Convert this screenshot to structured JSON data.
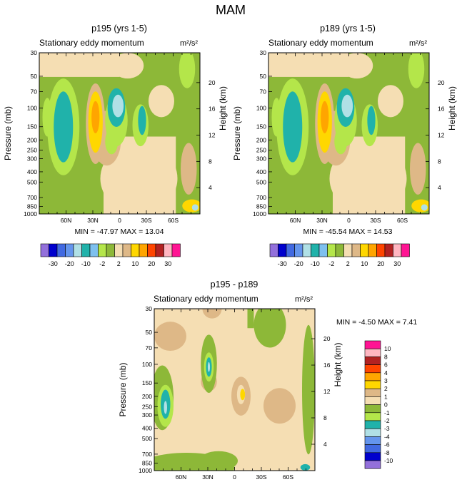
{
  "title": "MAM",
  "colors": {
    "-35": "#9370db",
    "-30": "#0000cd",
    "-25": "#4169e1",
    "-20": "#6495ed",
    "-15": "#b0e0e6",
    "-10": "#20b2aa",
    "-5": "#7ec0ee",
    "-2": "#b4e64a",
    "0": "#8db838",
    "2": "#f5deb3",
    "5": "#deb887",
    "10": "#ffd700",
    "15": "#ffa500",
    "20": "#ff4500",
    "25": "#b22222",
    "30": "#ffb6c1",
    "35": "#ff1493"
  },
  "chart_data": [
    {
      "type": "heatmap",
      "title": "p195 (yrs 1-5)",
      "subtitle": "Stationary eddy momentum",
      "units": "m²/s²",
      "ylabel": "Pressure (mb)",
      "ylabel_right": "Height (km)",
      "x_ticks": [
        "60N",
        "30N",
        "0",
        "30S",
        "60S"
      ],
      "x_tick_values": [
        60,
        30,
        0,
        -30,
        -60
      ],
      "xlim": [
        90,
        -90
      ],
      "y_ticks": [
        "30",
        "50",
        "70",
        "100",
        "150",
        "200",
        "250",
        "300",
        "400",
        "500",
        "700",
        "850",
        "1000"
      ],
      "y_tick_values": [
        30,
        50,
        70,
        100,
        150,
        200,
        250,
        300,
        400,
        500,
        700,
        850,
        1000
      ],
      "ylim": [
        1000,
        30
      ],
      "height_ticks": [
        "20",
        "16",
        "12",
        "8",
        "4"
      ],
      "stats": "MIN = -47.97   MAX =  13.04"
    },
    {
      "type": "heatmap",
      "title": "p189 (yrs 1-5)",
      "subtitle": "Stationary eddy momentum",
      "units": "m²/s²",
      "ylabel": "Pressure (mb)",
      "ylabel_right": "Height (km)",
      "x_ticks": [
        "60N",
        "30N",
        "0",
        "30S",
        "60S"
      ],
      "x_tick_values": [
        60,
        30,
        0,
        -30,
        -60
      ],
      "xlim": [
        90,
        -90
      ],
      "y_ticks": [
        "30",
        "50",
        "70",
        "100",
        "150",
        "200",
        "250",
        "300",
        "400",
        "500",
        "700",
        "850",
        "1000"
      ],
      "y_tick_values": [
        30,
        50,
        70,
        100,
        150,
        200,
        250,
        300,
        400,
        500,
        700,
        850,
        1000
      ],
      "ylim": [
        1000,
        30
      ],
      "height_ticks": [
        "20",
        "16",
        "12",
        "8",
        "4"
      ],
      "stats": "MIN = -45.54   MAX =  14.53"
    },
    {
      "type": "heatmap",
      "title": "p195 - p189",
      "subtitle": "Stationary eddy momentum",
      "units": "m²/s²",
      "ylabel": "Pressure (mb)",
      "ylabel_right": "Height (km)",
      "x_ticks": [
        "60N",
        "30N",
        "0",
        "30S",
        "60S"
      ],
      "x_tick_values": [
        60,
        30,
        0,
        -30,
        -60
      ],
      "xlim": [
        90,
        -90
      ],
      "y_ticks": [
        "30",
        "50",
        "70",
        "100",
        "150",
        "200",
        "250",
        "300",
        "400",
        "500",
        "700",
        "850",
        "1000"
      ],
      "y_tick_values": [
        30,
        50,
        70,
        100,
        150,
        200,
        250,
        300,
        400,
        500,
        700,
        850,
        1000
      ],
      "ylim": [
        1000,
        30
      ],
      "height_ticks": [
        "20",
        "16",
        "12",
        "8",
        "4"
      ],
      "stats": "MIN =  -4.50   MAX =   7.41"
    }
  ],
  "colorbar_top": {
    "labels": [
      "-30",
      "-20",
      "-10",
      "-2",
      "2",
      "10",
      "20",
      "30"
    ],
    "colors": [
      "#9370db",
      "#0000cd",
      "#4169e1",
      "#6495ed",
      "#b0e0e6",
      "#20b2aa",
      "#7ec0ee",
      "#b4e64a",
      "#8db838",
      "#f5deb3",
      "#deb887",
      "#ffd700",
      "#ffa500",
      "#ff4500",
      "#b22222",
      "#ffb6c1",
      "#ff1493"
    ]
  },
  "colorbar_diff": {
    "labels": [
      "10",
      "8",
      "6",
      "4",
      "3",
      "2",
      "1",
      "0",
      "-1",
      "-2",
      "-3",
      "-4",
      "-6",
      "-8",
      "-10"
    ],
    "colors": [
      "#ff1493",
      "#ffb6c1",
      "#b22222",
      "#ff4500",
      "#ffa500",
      "#ffd700",
      "#deb887",
      "#f5deb3",
      "#8db838",
      "#b4e64a",
      "#20b2aa",
      "#b0e0e6",
      "#6495ed",
      "#4169e1",
      "#0000cd",
      "#9370db"
    ]
  }
}
